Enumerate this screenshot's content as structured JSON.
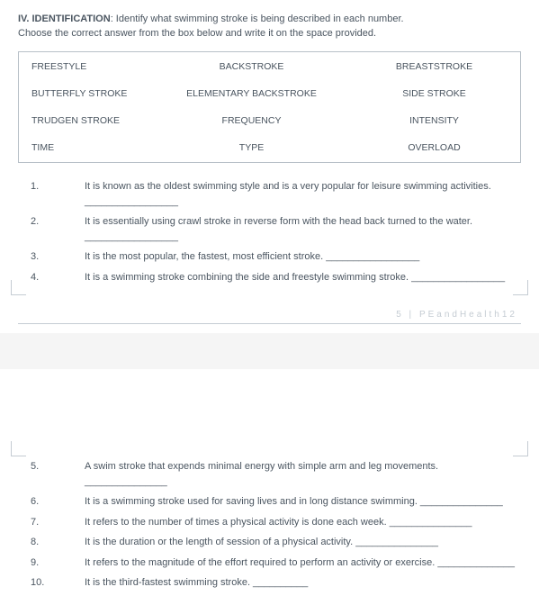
{
  "header": {
    "section_number": "IV. IDENTIFICATION",
    "section_desc": ": Identify what swimming stroke is being described in each number.",
    "instruction": "Choose the correct answer from the box below and write it on the space provided."
  },
  "choice_box": {
    "rows": [
      [
        "FREESTYLE",
        "BACKSTROKE",
        "BREASTSTROKE"
      ],
      [
        "BUTTERFLY STROKE",
        "ELEMENTARY BACKSTROKE",
        "SIDE STROKE"
      ],
      [
        "TRUDGEN STROKE",
        "FREQUENCY",
        "INTENSITY"
      ],
      [
        "TIME",
        "TYPE",
        "OVERLOAD"
      ]
    ]
  },
  "questions_p1": [
    {
      "num": "1.",
      "text": "It is known as the oldest swimming style and is a very popular for leisure swimming activities. _________________"
    },
    {
      "num": "2.",
      "text": "It is essentially using crawl stroke in reverse form with the head back turned to the water. _________________"
    },
    {
      "num": "3.",
      "text": "It is the most popular, the fastest, most efficient stroke. _________________"
    },
    {
      "num": "4.",
      "text": "It is a swimming stroke combining the side and freestyle swimming stroke. _________________"
    }
  ],
  "questions_p2": [
    {
      "num": "5.",
      "text": "A swim stroke that expends minimal energy with simple arm and leg movements. _______________"
    },
    {
      "num": "6.",
      "text": "It is a swimming stroke used for saving lives and in long distance swimming. _______________"
    },
    {
      "num": "7.",
      "text": "It refers to the number of times a physical activity is done each week. _______________"
    },
    {
      "num": "8.",
      "text": "It is the duration or the length of session of a physical activity. _______________"
    },
    {
      "num": "9.",
      "text": "It refers to the magnitude of the effort required to perform an activity or exercise. ______________"
    },
    {
      "num": "10.",
      "text": "It is the third-fastest swimming stroke. __________"
    }
  ],
  "footer": {
    "page_num": "5",
    "separator": "|",
    "course": "PEandHealth12"
  }
}
